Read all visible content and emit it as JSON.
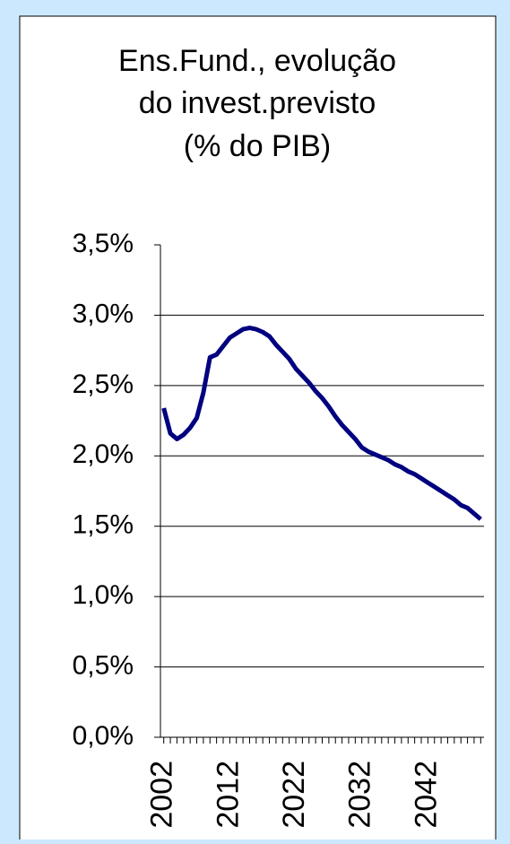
{
  "chart_data": {
    "type": "line",
    "title_lines": [
      "Ens.Fund., evolução",
      "do invest.previsto",
      "(% do PIB)"
    ],
    "x": [
      2002,
      2003,
      2004,
      2005,
      2006,
      2007,
      2008,
      2009,
      2010,
      2011,
      2012,
      2013,
      2014,
      2015,
      2016,
      2017,
      2018,
      2019,
      2020,
      2021,
      2022,
      2023,
      2024,
      2025,
      2026,
      2027,
      2028,
      2029,
      2030,
      2031,
      2032,
      2033,
      2034,
      2035,
      2036,
      2037,
      2038,
      2039,
      2040,
      2041,
      2042,
      2043,
      2044,
      2045,
      2046,
      2047,
      2048,
      2049,
      2050
    ],
    "series": [
      {
        "color": "#000080",
        "values": [
          2.34,
          2.16,
          2.12,
          2.15,
          2.2,
          2.27,
          2.45,
          2.7,
          2.72,
          2.78,
          2.84,
          2.87,
          2.9,
          2.91,
          2.9,
          2.88,
          2.85,
          2.79,
          2.74,
          2.69,
          2.62,
          2.57,
          2.52,
          2.46,
          2.41,
          2.35,
          2.28,
          2.22,
          2.17,
          2.12,
          2.06,
          2.03,
          2.01,
          1.99,
          1.97,
          1.94,
          1.92,
          1.89,
          1.87,
          1.84,
          1.81,
          1.78,
          1.75,
          1.72,
          1.69,
          1.65,
          1.63,
          1.59,
          1.55
        ]
      }
    ],
    "xlim": [
      2001.5,
      2050.5
    ],
    "xticks": [
      2002,
      2012,
      2022,
      2032,
      2042
    ],
    "ylim": [
      0,
      3.5
    ],
    "yticks": [
      {
        "value": 0,
        "label": "0,0%"
      },
      {
        "value": 0.5,
        "label": "0,5%"
      },
      {
        "value": 1,
        "label": "1,0%"
      },
      {
        "value": 1.5,
        "label": "1,5%"
      },
      {
        "value": 2,
        "label": "2,0%"
      },
      {
        "value": 2.5,
        "label": "2,5%"
      },
      {
        "value": 3,
        "label": "3,0%"
      },
      {
        "value": 3.5,
        "label": "3,5%"
      }
    ],
    "grid": true
  }
}
